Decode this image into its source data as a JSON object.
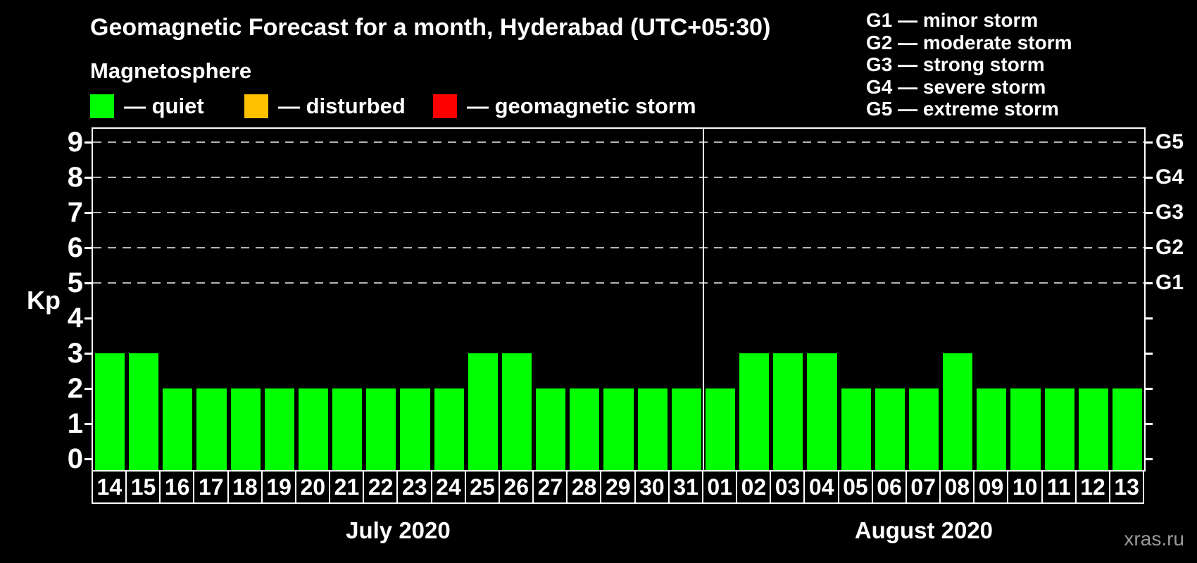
{
  "title": "Geomagnetic Forecast for a month, Hyderabad (UTC+05:30)",
  "subtitle": "Magnetosphere",
  "legend": [
    {
      "name": "quiet",
      "label": "— quiet",
      "color": "#00ff00"
    },
    {
      "name": "disturbed",
      "label": "— disturbed",
      "color": "#ffc000"
    },
    {
      "name": "storm",
      "label": "— geomagnetic storm",
      "color": "#ff0000"
    }
  ],
  "g_scale_legend": [
    "G1 — minor storm",
    "G2 — moderate storm",
    "G3 — strong storm",
    "G4 — severe storm",
    "G5 — extreme storm"
  ],
  "watermark": "xras.ru",
  "chart_data": {
    "type": "bar",
    "title": "Geomagnetic Forecast for a month, Hyderabad (UTC+05:30)",
    "ylabel": "Kp",
    "ylim": [
      0,
      9
    ],
    "y_ticks": [
      0,
      1,
      2,
      3,
      4,
      5,
      6,
      7,
      8,
      9
    ],
    "grid": "dashed horizontal lines at Kp 5-9 only",
    "legend_position": "top",
    "bar_colors": {
      "quiet": "#00ff00",
      "disturbed": "#ffc000",
      "storm": "#ff0000"
    },
    "right_axis_labels": [
      {
        "level": 5,
        "label": "G1"
      },
      {
        "level": 6,
        "label": "G2"
      },
      {
        "level": 7,
        "label": "G3"
      },
      {
        "level": 8,
        "label": "G4"
      },
      {
        "level": 9,
        "label": "G5"
      }
    ],
    "months": [
      {
        "label": "July 2020",
        "categories": [
          "14",
          "15",
          "16",
          "17",
          "18",
          "19",
          "20",
          "21",
          "22",
          "23",
          "24",
          "25",
          "26",
          "27",
          "28",
          "29",
          "30",
          "31"
        ],
        "values": [
          3,
          3,
          2,
          2,
          2,
          2,
          2,
          2,
          2,
          2,
          2,
          3,
          3,
          2,
          2,
          2,
          2,
          2
        ]
      },
      {
        "label": "August 2020",
        "categories": [
          "01",
          "02",
          "03",
          "04",
          "05",
          "06",
          "07",
          "08",
          "09",
          "10",
          "11",
          "12",
          "13"
        ],
        "values": [
          2,
          3,
          3,
          3,
          2,
          2,
          2,
          3,
          2,
          2,
          2,
          2,
          2
        ]
      }
    ]
  }
}
